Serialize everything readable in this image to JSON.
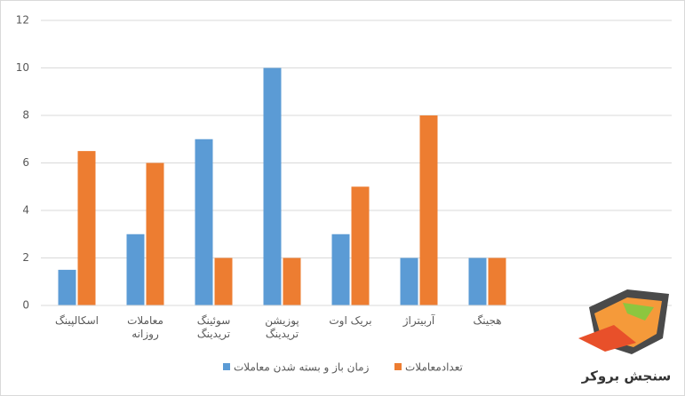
{
  "chart_data": {
    "type": "bar",
    "categories": [
      "اسکالپینگ",
      "معاملات روزانه",
      "سوئینگ تریدینگ",
      "پوزیشن تریدینگ",
      "بریک اوت",
      "آربیتراژ",
      "هجینگ"
    ],
    "series": [
      {
        "name": "زمان باز و بسته شدن معاملات",
        "color": "#5b9bd5",
        "values": [
          1.5,
          3,
          7,
          10,
          3,
          2,
          2
        ]
      },
      {
        "name": "تعدادمعاملات",
        "color": "#ed7d31",
        "values": [
          6.5,
          6,
          2,
          2,
          5,
          8,
          2
        ]
      }
    ],
    "ylim": [
      0,
      12
    ],
    "yticks": [
      0,
      2,
      4,
      6,
      8,
      10,
      12
    ],
    "grid": true
  },
  "logo_text": "سنجش بروکر"
}
